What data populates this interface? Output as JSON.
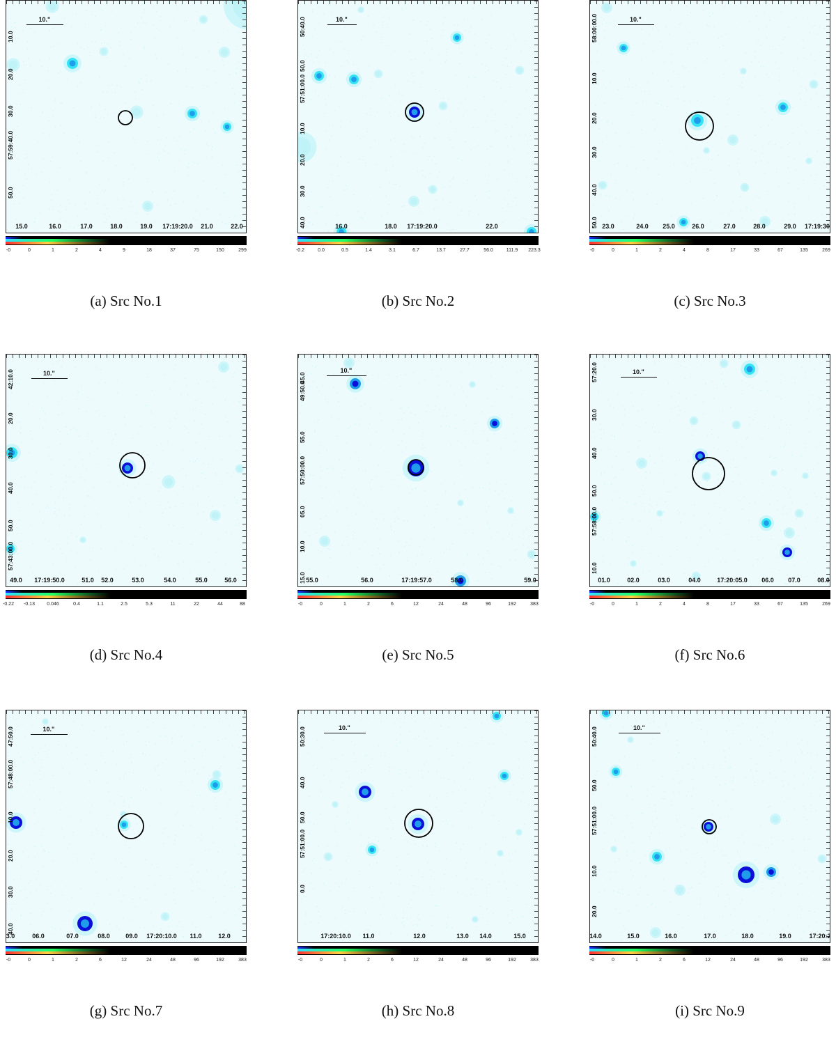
{
  "colors": {
    "sky": "#eefbfd",
    "faint": "#bff3f8",
    "cyan": "#34e4f4",
    "mid": "#1f9dea",
    "core": "#0a10d8",
    "circle": "#000000"
  },
  "panels": [
    {
      "caption": "(a) Src No.1",
      "scalebar_label": "10.\"",
      "x_ticks": [
        "15.0",
        "16.0",
        "17.0",
        "18.0",
        "19.0",
        "17:19:20.0",
        "21.0",
        "22.0"
      ],
      "y_ticks": [
        "10.0",
        "20.0",
        "30.0",
        "57:59:40.0",
        "50.0"
      ],
      "colorbar_ticks": [
        "-0",
        "0",
        "1",
        "2",
        "4",
        "9",
        "18",
        "37",
        "75",
        "150",
        "299"
      ]
    },
    {
      "caption": "(b) Src No.2",
      "scalebar_label": "10.\"",
      "x_ticks": [
        "16.0",
        "18.0",
        "17:19:20.0",
        "22.0"
      ],
      "y_ticks": [
        "50:40.0",
        "50.0",
        "57:51:00.0",
        "10.0",
        "20.0",
        "30.0",
        "40.0"
      ],
      "colorbar_ticks": [
        "-0.2",
        "0.0",
        "0.5",
        "1.4",
        "3.1",
        "6.7",
        "13.7",
        "27.7",
        "56.0",
        "111.9",
        "223.3"
      ]
    },
    {
      "caption": "(c) Src No.3",
      "scalebar_label": "10.\"",
      "x_ticks": [
        "23.0",
        "24.0",
        "25.0",
        "26.0",
        "27.0",
        "28.0",
        "29.0",
        "17:19:30"
      ],
      "y_ticks": [
        "58:00:00.0",
        "10.0",
        "20.0",
        "30.0",
        "40.0",
        "50.0"
      ],
      "colorbar_ticks": [
        "-0",
        "0",
        "1",
        "2",
        "4",
        "8",
        "17",
        "33",
        "67",
        "135",
        "269"
      ]
    },
    {
      "caption": "(d) Src No.4",
      "scalebar_label": "10.\"",
      "x_ticks": [
        "49.0",
        "17:19:50.0",
        "51.0",
        "52.0",
        "53.0",
        "54.0",
        "55.0",
        "56.0"
      ],
      "y_ticks": [
        "42:10.0",
        "20.0",
        "30.0",
        "40.0",
        "50.0",
        "57:43:00.0"
      ],
      "colorbar_ticks": [
        "-0.22",
        "-0.13",
        "0.046",
        "0.4",
        "1.1",
        "2.5",
        "5.3",
        "11",
        "22",
        "44",
        "88"
      ]
    },
    {
      "caption": "(e) Src No.5",
      "scalebar_label": "10.\"",
      "x_ticks": [
        "55.0",
        "56.0",
        "17:19:57.0",
        "58.0",
        "59.0"
      ],
      "y_ticks": [
        "45.0",
        "49:50.0",
        "55.0",
        "57:50:00.0",
        "05.0",
        "10.0",
        "15.0"
      ],
      "colorbar_ticks": [
        "-0",
        "0",
        "1",
        "2",
        "6",
        "12",
        "24",
        "48",
        "96",
        "192",
        "383"
      ]
    },
    {
      "caption": "(f) Src No.6",
      "scalebar_label": "10.\"",
      "x_ticks": [
        "01.0",
        "02.0",
        "03.0",
        "04.0",
        "17:20:05.0",
        "06.0",
        "07.0",
        "08.0"
      ],
      "y_ticks": [
        "57:20.0",
        "30.0",
        "40.0",
        "50.0",
        "57:58:00.0",
        "10.0"
      ],
      "colorbar_ticks": [
        "-0",
        "0",
        "1",
        "2",
        "4",
        "8",
        "17",
        "33",
        "67",
        "135",
        "269"
      ]
    },
    {
      "caption": "(g) Src No.7",
      "scalebar_label": "10.\"",
      "x_ticks": [
        "3.0",
        "06.0",
        "07.0",
        "08.0",
        "09.0",
        "17:20:10.0",
        "11.0",
        "12.0"
      ],
      "y_ticks": [
        "47:50.0",
        "57:48:00.0",
        "10.0",
        "20.0",
        "30.0",
        "40.0"
      ],
      "colorbar_ticks": [
        "-0",
        "0",
        "1",
        "2",
        "6",
        "12",
        "24",
        "48",
        "96",
        "192",
        "383"
      ]
    },
    {
      "caption": "(h) Src No.8",
      "scalebar_label": "10.\"",
      "x_ticks": [
        "17:20:10.0",
        "11.0",
        "12.0",
        "13.0",
        "14.0",
        "15.0"
      ],
      "y_ticks": [
        "50:30.0",
        "40.0",
        "50.0",
        "57:51:00.0",
        "0.0"
      ],
      "colorbar_ticks": [
        "-0",
        "0",
        "1",
        "2",
        "6",
        "12",
        "24",
        "48",
        "96",
        "192",
        "383"
      ]
    },
    {
      "caption": "(i) Src No.9",
      "scalebar_label": "10.\"",
      "x_ticks": [
        "14.0",
        "15.0",
        "16.0",
        "17.0",
        "18.0",
        "19.0",
        "17:20:2"
      ],
      "y_ticks": [
        "50:40.0",
        "50.0",
        "57:51:00.0",
        "10.0",
        "20.0"
      ],
      "colorbar_ticks": [
        "-0",
        "0",
        "1",
        "2",
        "6",
        "12",
        "24",
        "48",
        "96",
        "192",
        "383"
      ]
    }
  ]
}
